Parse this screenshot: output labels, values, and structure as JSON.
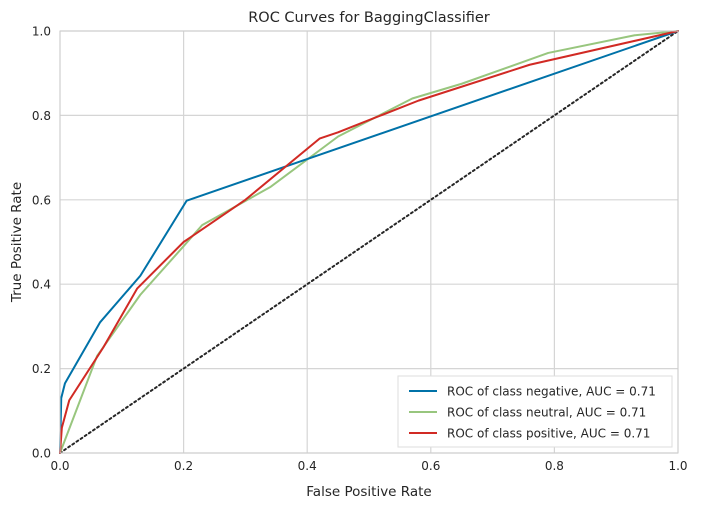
{
  "chart_data": {
    "type": "line",
    "title": "ROC Curves for BaggingClassifier",
    "xlabel": "False Positive Rate",
    "ylabel": "True Positive Rate",
    "xlim": [
      0,
      1
    ],
    "ylim": [
      0,
      1
    ],
    "x_ticks": [
      "0.0",
      "0.2",
      "0.4",
      "0.6",
      "0.8",
      "1.0"
    ],
    "y_ticks": [
      "0.0",
      "0.2",
      "0.4",
      "0.6",
      "0.8",
      "1.0"
    ],
    "grid": true,
    "legend_position": "bottom-right",
    "series": [
      {
        "name": "ROC of class negative, AUC = 0.71",
        "color": "#0072a8",
        "points": [
          [
            0,
            0
          ],
          [
            0.002,
            0.13
          ],
          [
            0.008,
            0.165
          ],
          [
            0.065,
            0.31
          ],
          [
            0.13,
            0.42
          ],
          [
            0.205,
            0.598
          ],
          [
            1,
            1
          ]
        ]
      },
      {
        "name": "ROC of class neutral, AUC = 0.71",
        "color": "#98c67e",
        "points": [
          [
            0,
            0
          ],
          [
            0.06,
            0.23
          ],
          [
            0.13,
            0.375
          ],
          [
            0.2,
            0.49
          ],
          [
            0.23,
            0.54
          ],
          [
            0.34,
            0.63
          ],
          [
            0.45,
            0.75
          ],
          [
            0.57,
            0.84
          ],
          [
            0.65,
            0.875
          ],
          [
            0.79,
            0.948
          ],
          [
            0.93,
            0.99
          ],
          [
            1,
            1
          ]
        ]
      },
      {
        "name": "ROC of class positive, AUC = 0.71",
        "color": "#d12a24",
        "points": [
          [
            0,
            0
          ],
          [
            0.003,
            0.06
          ],
          [
            0.015,
            0.125
          ],
          [
            0.07,
            0.25
          ],
          [
            0.125,
            0.39
          ],
          [
            0.2,
            0.5
          ],
          [
            0.21,
            0.51
          ],
          [
            0.3,
            0.6
          ],
          [
            0.42,
            0.745
          ],
          [
            0.45,
            0.76
          ],
          [
            0.58,
            0.835
          ],
          [
            0.76,
            0.92
          ],
          [
            1,
            1
          ]
        ]
      }
    ],
    "baseline": {
      "points": [
        [
          0,
          0
        ],
        [
          1,
          1
        ]
      ],
      "style": "dotted",
      "color": "#262626"
    }
  }
}
